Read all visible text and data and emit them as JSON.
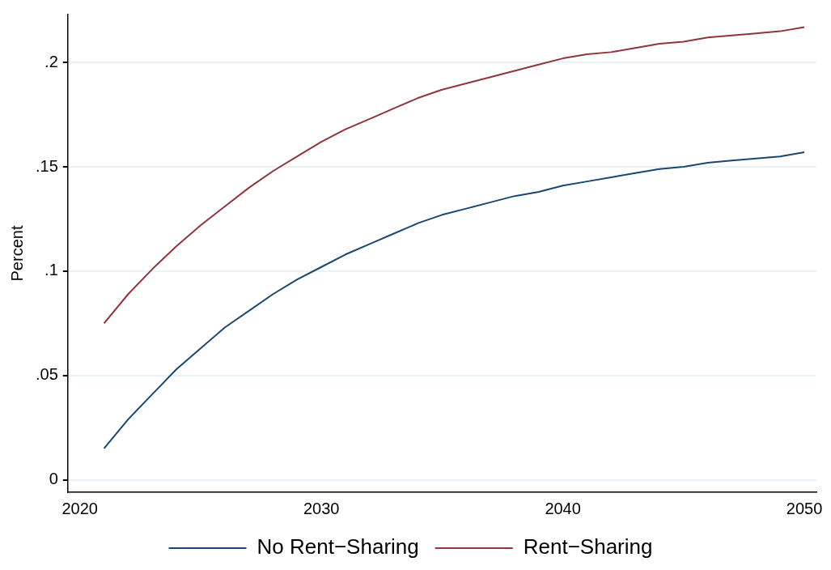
{
  "chart_data": {
    "type": "line",
    "ylabel": "Percent",
    "x": [
      2021,
      2022,
      2023,
      2024,
      2025,
      2026,
      2027,
      2028,
      2029,
      2030,
      2031,
      2032,
      2033,
      2034,
      2035,
      2036,
      2037,
      2038,
      2039,
      2040,
      2041,
      2042,
      2043,
      2044,
      2045,
      2046,
      2047,
      2048,
      2049,
      2050
    ],
    "series": [
      {
        "name": "No Rent−Sharing",
        "color": "#1a476f",
        "values": [
          0.015,
          0.029,
          0.041,
          0.053,
          0.063,
          0.073,
          0.081,
          0.089,
          0.096,
          0.102,
          0.108,
          0.113,
          0.118,
          0.123,
          0.127,
          0.13,
          0.133,
          0.136,
          0.138,
          0.141,
          0.143,
          0.145,
          0.147,
          0.149,
          0.15,
          0.152,
          0.153,
          0.154,
          0.155,
          0.157
        ]
      },
      {
        "name": "Rent−Sharing",
        "color": "#90353b",
        "values": [
          0.075,
          0.089,
          0.101,
          0.112,
          0.122,
          0.131,
          0.14,
          0.148,
          0.155,
          0.162,
          0.168,
          0.173,
          0.178,
          0.183,
          0.187,
          0.19,
          0.193,
          0.196,
          0.199,
          0.202,
          0.204,
          0.205,
          0.207,
          0.209,
          0.21,
          0.212,
          0.213,
          0.214,
          0.215,
          0.217
        ]
      }
    ],
    "xlim": [
      2019.5,
      2050.5
    ],
    "xticks": [
      2020,
      2030,
      2040,
      2050
    ],
    "ylim": [
      -0.006,
      0.223
    ],
    "yticks": [
      {
        "value": 0,
        "label": "0"
      },
      {
        "value": 0.05,
        "label": ".05"
      },
      {
        "value": 0.1,
        "label": ".1"
      },
      {
        "value": 0.15,
        "label": ".15"
      },
      {
        "value": 0.2,
        "label": ".2"
      }
    ],
    "grid": "y",
    "legend": "bottom",
    "marker": "none",
    "line_style": "solid"
  }
}
